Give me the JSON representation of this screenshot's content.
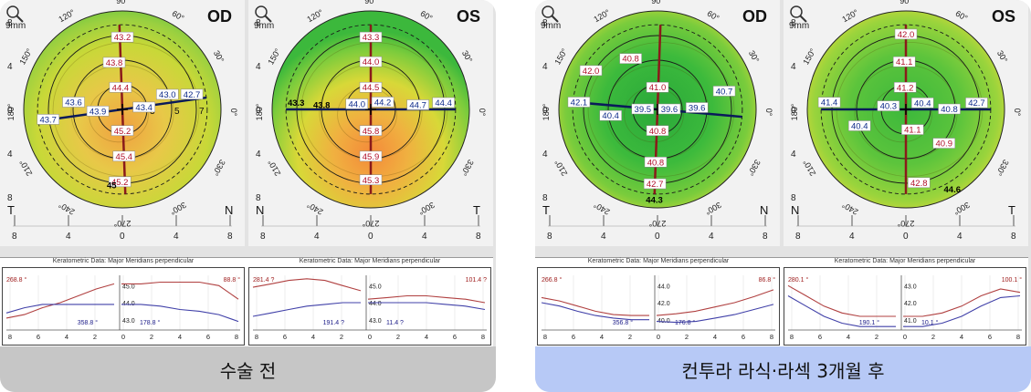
{
  "panels": [
    {
      "caption": "수술 전",
      "maps": [
        {
          "eye": "OD",
          "mag": "9mm",
          "left_letter": "T",
          "right_letter": "N",
          "style": "pre",
          "markers": [
            {
              "text": "43.2",
              "kind": "red",
              "r": 0.73,
              "a": 90
            },
            {
              "text": "43.8",
              "kind": "red",
              "r": 0.48,
              "a": 100
            },
            {
              "text": "44.4",
              "kind": "red",
              "r": 0.22,
              "a": 95
            },
            {
              "text": "45.2",
              "kind": "red",
              "r": 0.22,
              "a": 270
            },
            {
              "text": "45.4",
              "kind": "red",
              "r": 0.48,
              "a": 272
            },
            {
              "text": "45.2",
              "kind": "red",
              "r": 0.74,
              "a": 268
            },
            {
              "text": "43.0",
              "kind": "blue",
              "r": 0.48,
              "a": 18
            },
            {
              "text": "42.7",
              "kind": "blue",
              "r": 0.72,
              "a": 12
            },
            {
              "text": "43.4",
              "kind": "blue",
              "r": 0.22,
              "a": 5
            },
            {
              "text": "43.9",
              "kind": "blue",
              "r": 0.25,
              "a": 185
            },
            {
              "text": "43.6",
              "kind": "blue",
              "r": 0.5,
              "a": 172
            },
            {
              "text": "43.7",
              "kind": "blue",
              "r": 0.76,
              "a": 188
            },
            {
              "text": "45",
              "kind": "plain",
              "r": 0.78,
              "a": 262
            }
          ],
          "merid_a": 92,
          "merid_b": 8,
          "ring_nums": [
            "3",
            "5",
            "7"
          ]
        },
        {
          "eye": "OS",
          "mag": "9mm",
          "left_letter": "N",
          "right_letter": "T",
          "style": "pre2",
          "markers": [
            {
              "text": "43.3",
              "kind": "red",
              "r": 0.73,
              "a": 90
            },
            {
              "text": "44.0",
              "kind": "red",
              "r": 0.48,
              "a": 90
            },
            {
              "text": "44.5",
              "kind": "red",
              "r": 0.22,
              "a": 90
            },
            {
              "text": "45.8",
              "kind": "red",
              "r": 0.22,
              "a": 270
            },
            {
              "text": "45.9",
              "kind": "red",
              "r": 0.48,
              "a": 270
            },
            {
              "text": "45.3",
              "kind": "red",
              "r": 0.72,
              "a": 270
            },
            {
              "text": "44.2",
              "kind": "blue",
              "r": 0.14,
              "a": 30
            },
            {
              "text": "44.7",
              "kind": "blue",
              "r": 0.48,
              "a": 5
            },
            {
              "text": "44.4",
              "kind": "blue",
              "r": 0.74,
              "a": 5
            },
            {
              "text": "44.0",
              "kind": "blue",
              "r": 0.15,
              "a": 160
            },
            {
              "text": "43.8",
              "kind": "plain",
              "r": 0.5,
              "a": 175
            },
            {
              "text": "43.3",
              "kind": "plain",
              "r": 0.76,
              "a": 175
            }
          ],
          "merid_a": 90,
          "merid_b": 0,
          "ring_nums": []
        }
      ],
      "kgraphs": [
        {
          "title": "Keratometric Data: Major Meridians perpendicular",
          "tl": "268.8 °",
          "tr": "88.8 °",
          "bl": "358.8 °",
          "br": "178.8 °",
          "yticks": [
            "45.0",
            "44.0",
            "43.0"
          ],
          "xticks": [
            "8",
            "6",
            "4",
            "2",
            "0",
            "2",
            "4",
            "6",
            "8"
          ],
          "red_left": [
            43.1,
            43.3,
            43.7,
            44.0,
            44.4,
            44.8,
            45.1
          ],
          "blue_left": [
            43.4,
            43.7,
            43.9,
            43.9,
            43.9,
            43.9,
            43.9
          ],
          "red_right": [
            45.1,
            45.1,
            45.2,
            45.2,
            45.2,
            45.0,
            44.2
          ],
          "blue_right": [
            43.9,
            43.9,
            43.8,
            43.6,
            43.5,
            43.3,
            42.9
          ]
        },
        {
          "title": "Keratometric Data: Major Meridians perpendicular",
          "tl": "281.4 ?",
          "tr": "101.4 ?",
          "bl": "191.4 ?",
          "br": "11.4 ?",
          "yticks": [
            "45.0",
            "44.0",
            "43.0"
          ],
          "xticks": [
            "8",
            "6",
            "4",
            "2",
            "0",
            "2",
            "4",
            "6",
            "8"
          ],
          "red_left": [
            44.9,
            45.1,
            45.3,
            45.4,
            45.3,
            45.0,
            44.7
          ],
          "blue_left": [
            43.2,
            43.4,
            43.6,
            43.8,
            43.9,
            44.0,
            44.0
          ],
          "red_right": [
            44.2,
            44.3,
            44.4,
            44.4,
            44.3,
            44.2,
            44.0
          ],
          "blue_right": [
            44.0,
            44.0,
            44.0,
            44.0,
            43.9,
            43.8,
            43.6
          ]
        }
      ]
    },
    {
      "caption": "컨투라 라식·라섹 3개월 후",
      "maps": [
        {
          "eye": "OD",
          "mag": "9mm",
          "left_letter": "T",
          "right_letter": "N",
          "style": "post",
          "markers": [
            {
              "text": "42.0",
              "kind": "red",
              "r": 0.78,
              "a": 150
            },
            {
              "text": "40.8",
              "kind": "red",
              "r": 0.58,
              "a": 118
            },
            {
              "text": "41.0",
              "kind": "red",
              "r": 0.22,
              "a": 90
            },
            {
              "text": "40.8",
              "kind": "red",
              "r": 0.22,
              "a": 270
            },
            {
              "text": "40.8",
              "kind": "red",
              "r": 0.54,
              "a": 268
            },
            {
              "text": "42.7",
              "kind": "red",
              "r": 0.76,
              "a": 268
            },
            {
              "text": "40.7",
              "kind": "blue",
              "r": 0.7,
              "a": 15
            },
            {
              "text": "39.6",
              "kind": "blue",
              "r": 0.4,
              "a": 2
            },
            {
              "text": "39.6",
              "kind": "blue",
              "r": 0.12,
              "a": 0
            },
            {
              "text": "39.5",
              "kind": "blue",
              "r": 0.15,
              "a": 180
            },
            {
              "text": "40.4",
              "kind": "blue",
              "r": 0.48,
              "a": 188
            },
            {
              "text": "42.1",
              "kind": "blue",
              "r": 0.8,
              "a": 175
            },
            {
              "text": "44.3",
              "kind": "plain",
              "r": 0.92,
              "a": 268
            }
          ],
          "merid_a": 88,
          "merid_b": 175,
          "ring_nums": []
        },
        {
          "eye": "OS",
          "mag": "9mm",
          "left_letter": "N",
          "right_letter": "T",
          "style": "post2",
          "markers": [
            {
              "text": "42.0",
              "kind": "red",
              "r": 0.76,
              "a": 90
            },
            {
              "text": "41.1",
              "kind": "red",
              "r": 0.48,
              "a": 92
            },
            {
              "text": "41.2",
              "kind": "red",
              "r": 0.22,
              "a": 92
            },
            {
              "text": "41.1",
              "kind": "red",
              "r": 0.22,
              "a": 288
            },
            {
              "text": "40.9",
              "kind": "red",
              "r": 0.52,
              "a": 318
            },
            {
              "text": "42.8",
              "kind": "red",
              "r": 0.76,
              "a": 280
            },
            {
              "text": "40.4",
              "kind": "blue",
              "r": 0.18,
              "a": 20
            },
            {
              "text": "40.8",
              "kind": "blue",
              "r": 0.44,
              "a": 0
            },
            {
              "text": "42.7",
              "kind": "blue",
              "r": 0.72,
              "a": 5
            },
            {
              "text": "40.3",
              "kind": "blue",
              "r": 0.18,
              "a": 170
            },
            {
              "text": "40.4",
              "kind": "blue",
              "r": 0.5,
              "a": 200
            },
            {
              "text": "41.4",
              "kind": "blue",
              "r": 0.78,
              "a": 175
            },
            {
              "text": "44.6",
              "kind": "plain",
              "r": 0.94,
              "a": 300
            }
          ],
          "merid_a": 90,
          "merid_b": 0,
          "ring_nums": []
        }
      ],
      "kgraphs": [
        {
          "title": "Keratometric Data: Major Meridians perpendicular",
          "tl": "266.8 °",
          "tr": "86.8 °",
          "bl": "356.8 °",
          "br": "176.8 °",
          "yticks": [
            "44.0",
            "42.0",
            "40.0"
          ],
          "xticks": [
            "8",
            "6",
            "4",
            "2",
            "0",
            "2",
            "4",
            "6",
            "8"
          ],
          "red_left": [
            42.6,
            42.2,
            41.6,
            41.0,
            40.6,
            40.5,
            40.5
          ],
          "blue_left": [
            42.0,
            41.6,
            41.0,
            40.5,
            40.2,
            40.0,
            40.0
          ],
          "red_right": [
            40.5,
            40.7,
            41.0,
            41.5,
            42.0,
            42.7,
            43.5
          ],
          "blue_right": [
            39.8,
            39.7,
            39.8,
            40.2,
            40.6,
            41.2,
            41.8
          ]
        },
        {
          "title": "Keratometric Data: Major Meridians perpendicular",
          "tl": "280.1 °",
          "tr": "100.1 °",
          "bl": "190.1 °",
          "br": "10.1 °",
          "yticks": [
            "43.0",
            "42.0",
            "41.0"
          ],
          "xticks": [
            "8",
            "6",
            "4",
            "2",
            "0",
            "2",
            "4",
            "6",
            "8"
          ],
          "red_left": [
            43.0,
            42.4,
            41.8,
            41.4,
            41.2,
            41.2,
            41.2
          ],
          "blue_left": [
            42.4,
            41.8,
            41.2,
            40.8,
            40.6,
            40.6,
            40.6
          ],
          "red_right": [
            41.2,
            41.2,
            41.4,
            41.8,
            42.4,
            42.8,
            42.6
          ],
          "blue_right": [
            40.6,
            40.6,
            40.8,
            41.2,
            41.8,
            42.3,
            42.4
          ]
        }
      ]
    }
  ]
}
